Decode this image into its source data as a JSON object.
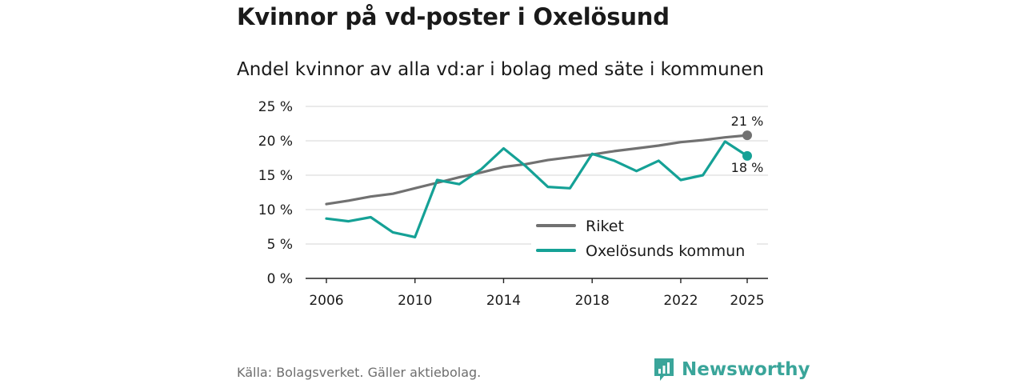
{
  "header": {
    "title": "Kvinnor på vd-poster i Oxelösund",
    "subtitle": "Andel kvinnor av alla vd:ar i bolag med säte i kommunen"
  },
  "footer": {
    "source": "Källa: Bolagsverket. Gäller aktiebolag.",
    "brand": "Newsworthy"
  },
  "colors": {
    "riket": "#717171",
    "kommun": "#15a196",
    "grid": "#dddddd",
    "axis": "#222222",
    "brand": "#3aa59a"
  },
  "chart_data": {
    "type": "line",
    "title": "Kvinnor på vd-poster i Oxelösund",
    "subtitle": "Andel kvinnor av alla vd:ar i bolag med säte i kommunen",
    "xlabel": "",
    "ylabel": "",
    "xlim": [
      2006,
      2025
    ],
    "ylim": [
      0,
      25
    ],
    "x_ticks": [
      2006,
      2010,
      2014,
      2018,
      2022,
      2025
    ],
    "x_tick_labels": [
      "2006",
      "2010",
      "2014",
      "2018",
      "2022",
      "2025"
    ],
    "y_ticks": [
      0,
      5,
      10,
      15,
      20,
      25
    ],
    "y_tick_labels": [
      "0 %",
      "5 %",
      "10 %",
      "15 %",
      "20 %",
      "25 %"
    ],
    "grid": true,
    "legend_position": "lower-right",
    "x": [
      2006,
      2007,
      2008,
      2009,
      2010,
      2011,
      2012,
      2013,
      2014,
      2015,
      2016,
      2017,
      2018,
      2019,
      2020,
      2021,
      2022,
      2023,
      2024,
      2025
    ],
    "series": [
      {
        "name": "Riket",
        "color": "#717171",
        "values": [
          10.8,
          11.3,
          11.9,
          12.3,
          13.1,
          13.9,
          14.7,
          15.4,
          16.2,
          16.6,
          17.2,
          17.6,
          18.0,
          18.5,
          18.9,
          19.3,
          19.8,
          20.1,
          20.5,
          20.8
        ],
        "end_label": "21 %"
      },
      {
        "name": "Oxelösunds kommun",
        "color": "#15a196",
        "values": [
          8.7,
          8.3,
          8.9,
          6.7,
          6.0,
          14.3,
          13.7,
          15.9,
          18.9,
          16.3,
          13.3,
          13.1,
          18.1,
          17.1,
          15.6,
          17.1,
          14.3,
          15.0,
          19.9,
          17.8
        ],
        "end_label": "18 %"
      }
    ]
  }
}
